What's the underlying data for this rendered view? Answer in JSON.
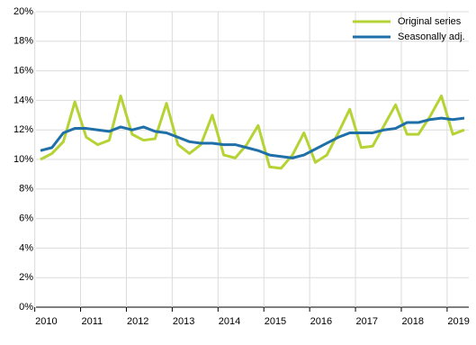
{
  "chart_data": {
    "type": "line",
    "categories": [
      "2010",
      null,
      null,
      null,
      "2011",
      null,
      null,
      null,
      "2012",
      null,
      null,
      null,
      "2013",
      null,
      null,
      null,
      "2014",
      null,
      null,
      null,
      "2015",
      null,
      null,
      null,
      "2016",
      null,
      null,
      null,
      "2017",
      null,
      null,
      null,
      "2018",
      null,
      null,
      null,
      "2019",
      null
    ],
    "series": [
      {
        "name": "Original series",
        "color": "#b5d334",
        "values": [
          10.0,
          10.4,
          11.2,
          13.9,
          11.5,
          11.0,
          11.3,
          14.3,
          11.7,
          11.3,
          11.4,
          13.8,
          11.0,
          10.4,
          11.0,
          13.0,
          10.3,
          10.1,
          11.0,
          12.3,
          9.5,
          9.4,
          10.3,
          11.8,
          9.8,
          10.3,
          11.8,
          13.4,
          10.8,
          10.9,
          12.3,
          13.7,
          11.7,
          11.7,
          12.9,
          14.3,
          11.7,
          12.0
        ]
      },
      {
        "name": "Seasonally adj.",
        "color": "#1f6fa8",
        "values": [
          10.6,
          10.8,
          11.8,
          12.1,
          12.1,
          12.0,
          11.9,
          12.2,
          12.0,
          12.2,
          11.9,
          11.8,
          11.5,
          11.2,
          11.1,
          11.1,
          11.0,
          11.0,
          10.8,
          10.6,
          10.3,
          10.2,
          10.1,
          10.3,
          10.7,
          11.1,
          11.5,
          11.8,
          11.8,
          11.8,
          12.0,
          12.1,
          12.5,
          12.5,
          12.7,
          12.8,
          12.7,
          12.8
        ]
      }
    ],
    "ylim": [
      0,
      20
    ],
    "yticks": [
      {
        "value": 0,
        "label": "0%"
      },
      {
        "value": 2,
        "label": "2%"
      },
      {
        "value": 4,
        "label": "4%"
      },
      {
        "value": 6,
        "label": "6%"
      },
      {
        "value": 8,
        "label": "8%"
      },
      {
        "value": 10,
        "label": "10%"
      },
      {
        "value": 12,
        "label": "12%"
      },
      {
        "value": 14,
        "label": "14%"
      },
      {
        "value": 16,
        "label": "16%"
      },
      {
        "value": 18,
        "label": "18%"
      },
      {
        "value": 20,
        "label": "20%"
      }
    ],
    "grid": true,
    "legend": "top-right"
  }
}
